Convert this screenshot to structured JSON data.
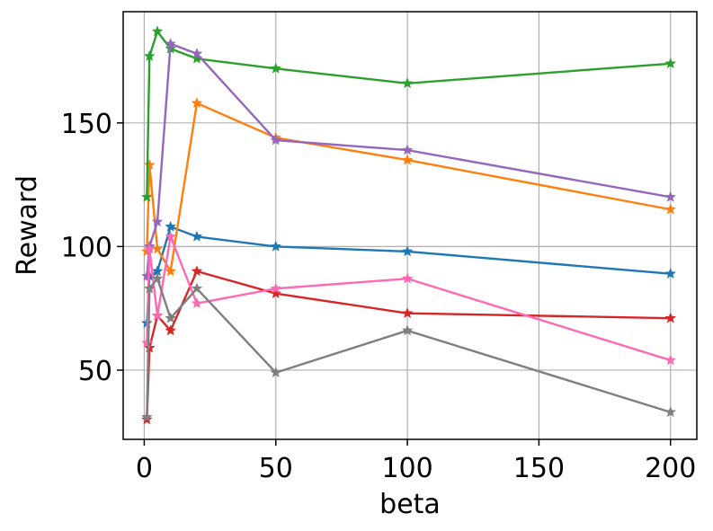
{
  "chart_data": {
    "type": "line",
    "xlabel": "beta",
    "ylabel": "Reward",
    "xlim": [
      -8,
      210
    ],
    "ylim": [
      22,
      195
    ],
    "grid": true,
    "legend": "none",
    "marker": "star",
    "xticks": [
      0,
      50,
      100,
      150,
      200
    ],
    "xtick_labels": [
      "0",
      "50",
      "100",
      "150",
      "200"
    ],
    "yticks": [
      50,
      100,
      150
    ],
    "ytick_labels": [
      "50",
      "100",
      "150"
    ],
    "series": [
      {
        "color": "#1f77b4",
        "x": [
          1,
          2,
          5,
          10,
          20,
          50,
          100,
          200
        ],
        "y": [
          69,
          88,
          90,
          108,
          104,
          100,
          98,
          89
        ]
      },
      {
        "color": "#ff7f0e",
        "x": [
          1,
          2,
          5,
          10,
          20,
          50,
          100,
          200
        ],
        "y": [
          98,
          133,
          99,
          90,
          158,
          144,
          135,
          115
        ]
      },
      {
        "color": "#2ca02c",
        "x": [
          1,
          2,
          5,
          10,
          20,
          50,
          100,
          200
        ],
        "y": [
          120,
          177,
          187,
          180,
          176,
          172,
          166,
          174
        ]
      },
      {
        "color": "#d62728",
        "x": [
          1,
          2,
          5,
          10,
          20,
          50,
          100,
          200
        ],
        "y": [
          30,
          59,
          72,
          66,
          90,
          81,
          73,
          71
        ]
      },
      {
        "color": "#9467bd",
        "x": [
          1,
          2,
          5,
          10,
          20,
          50,
          100,
          200
        ],
        "y": [
          88,
          100,
          110,
          182,
          178,
          143,
          139,
          120
        ]
      },
      {
        "color": "#ff69b4",
        "x": [
          1,
          2,
          5,
          10,
          20,
          50,
          100,
          200
        ],
        "y": [
          61,
          99,
          72,
          104,
          77,
          83,
          87,
          54
        ]
      },
      {
        "color": "#7f7f7f",
        "x": [
          1,
          2,
          5,
          10,
          20,
          50,
          100,
          200
        ],
        "y": [
          31,
          83,
          87,
          71,
          83,
          49,
          66,
          33
        ]
      }
    ]
  }
}
